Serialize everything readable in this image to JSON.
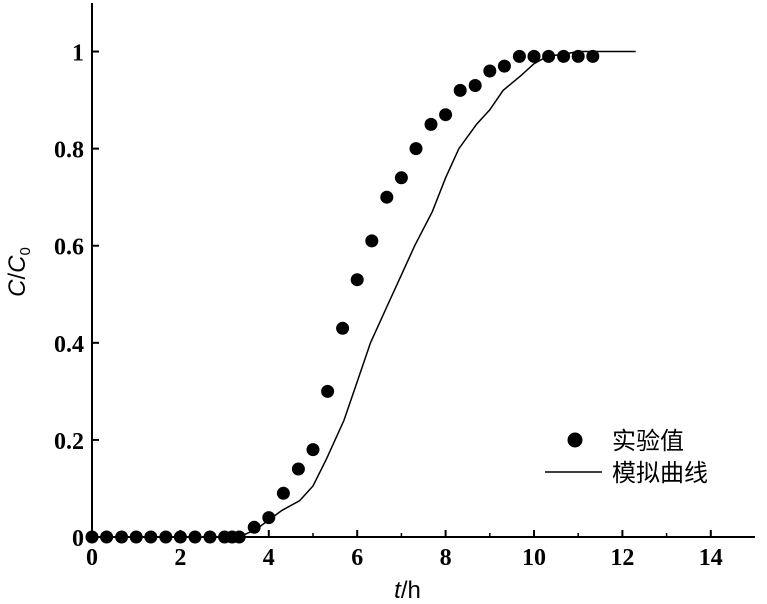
{
  "chart_data": {
    "type": "scatter",
    "xlabel": {
      "var": "t",
      "unit": "/h"
    },
    "ylabel": {
      "var": "C",
      "sep": "/",
      "var2": "C",
      "sub": "0"
    },
    "xlim": [
      0,
      15
    ],
    "ylim": [
      0,
      1.1
    ],
    "xticks": [
      "0",
      "2",
      "4",
      "6",
      "8",
      "10",
      "12",
      "14"
    ],
    "yticks": [
      "0",
      "0.2",
      "0.4",
      "0.6",
      "0.8",
      "1"
    ],
    "legend_position": "right",
    "grid": false,
    "series": [
      {
        "name": "实验值",
        "kind": "scatter",
        "color": "#000000",
        "x": [
          0,
          0.33,
          0.67,
          1.0,
          1.33,
          1.67,
          2.0,
          2.33,
          2.67,
          3.0,
          3.17,
          3.33,
          3.67,
          4.0,
          4.33,
          4.67,
          5.0,
          5.33,
          5.67,
          6.0,
          6.33,
          6.67,
          7.0,
          7.33,
          7.67,
          8.0,
          8.33,
          8.67,
          9.0,
          9.33,
          9.67,
          10.0,
          10.33,
          10.67,
          11.0,
          11.33
        ],
        "y": [
          0,
          0,
          0,
          0,
          0,
          0,
          0,
          0,
          0,
          0,
          0,
          0,
          0.02,
          0.04,
          0.09,
          0.14,
          0.18,
          0.3,
          0.43,
          0.53,
          0.61,
          0.7,
          0.74,
          0.8,
          0.85,
          0.87,
          0.92,
          0.93,
          0.96,
          0.97,
          0.99,
          0.99,
          0.99,
          0.99,
          0.99,
          0.99
        ]
      },
      {
        "name": "模拟曲线",
        "kind": "line",
        "color": "#000000",
        "x": [
          0,
          3.0,
          3.4,
          3.7,
          4.0,
          4.3,
          4.7,
          5.0,
          5.3,
          5.7,
          6.0,
          6.3,
          6.7,
          7.0,
          7.3,
          7.7,
          8.0,
          8.3,
          8.7,
          9.0,
          9.3,
          9.7,
          10.0,
          10.3,
          10.7,
          11.0,
          11.5,
          12.0,
          12.3
        ],
        "y": [
          0,
          0,
          0.003,
          0.015,
          0.035,
          0.055,
          0.075,
          0.105,
          0.16,
          0.24,
          0.32,
          0.4,
          0.48,
          0.54,
          0.6,
          0.67,
          0.74,
          0.8,
          0.85,
          0.88,
          0.92,
          0.95,
          0.975,
          0.99,
          0.995,
          1.0,
          1.0,
          1.0,
          1.0
        ]
      }
    ]
  }
}
